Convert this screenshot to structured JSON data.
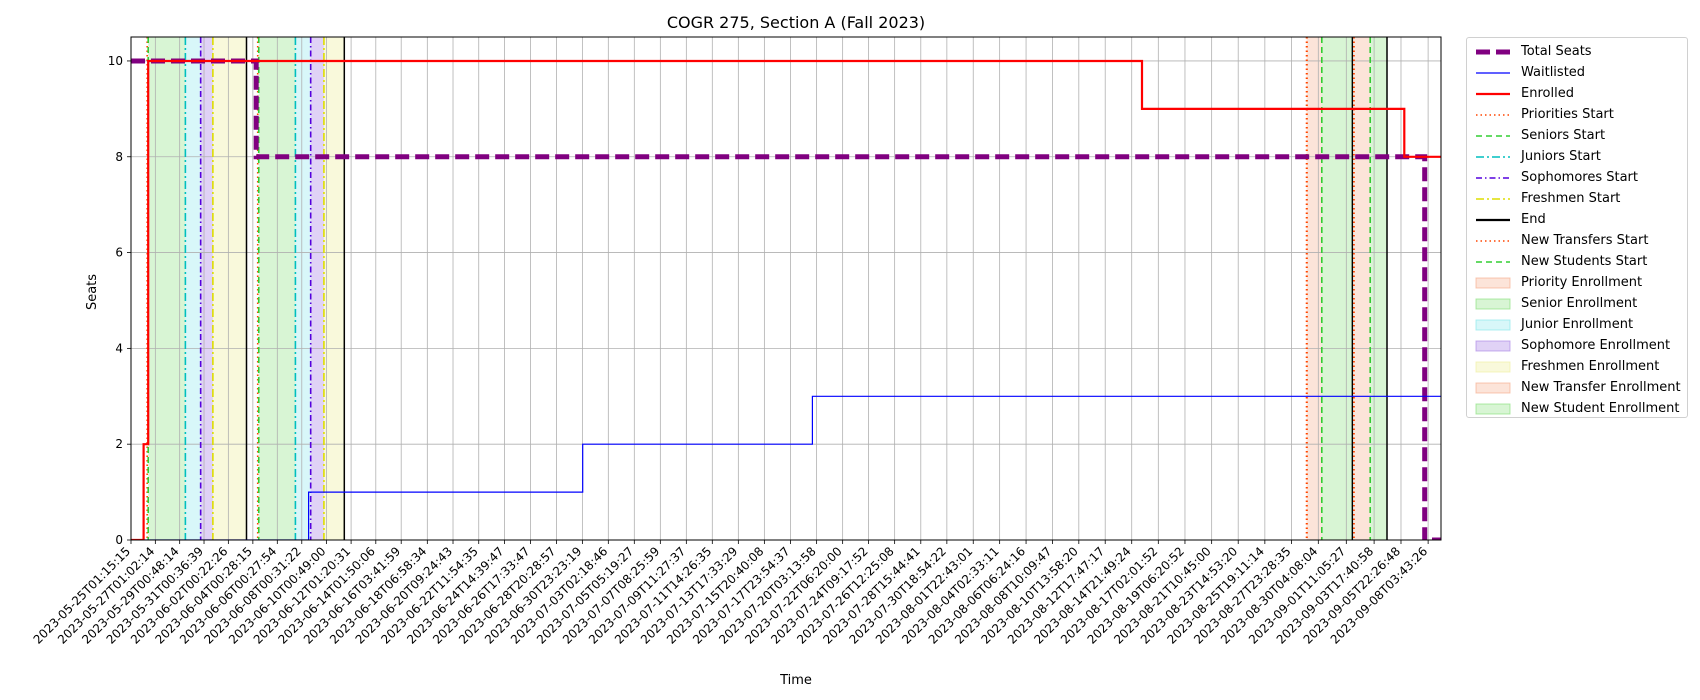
{
  "chart_data": {
    "type": "line",
    "title": "COGR 275, Section A (Fall 2023)",
    "xlabel": "Time",
    "ylabel": "Seats",
    "xlim": [
      "2023-05-25T01:15:15",
      "2023-09-09T05:00:00"
    ],
    "ylim": [
      0,
      10.5
    ],
    "grid": true,
    "legend_position": "outside-right",
    "x_ticks": [
      "2023-05-25T01:15:15",
      "2023-05-27T01:02:14",
      "2023-05-29T00:48:14",
      "2023-05-31T00:36:39",
      "2023-06-02T00:22:26",
      "2023-06-04T00:28:15",
      "2023-06-06T00:27:54",
      "2023-06-08T00:31:22",
      "2023-06-10T00:49:00",
      "2023-06-12T01:20:31",
      "2023-06-14T01:50:06",
      "2023-06-16T03:41:59",
      "2023-06-18T06:58:34",
      "2023-06-20T09:24:43",
      "2023-06-22T11:54:35",
      "2023-06-24T14:39:47",
      "2023-06-26T17:33:47",
      "2023-06-28T20:28:57",
      "2023-06-30T23:23:19",
      "2023-07-03T02:18:46",
      "2023-07-05T05:19:27",
      "2023-07-07T08:25:59",
      "2023-07-09T11:27:37",
      "2023-07-11T14:26:35",
      "2023-07-13T17:33:29",
      "2023-07-15T20:40:08",
      "2023-07-17T23:54:37",
      "2023-07-20T03:13:58",
      "2023-07-22T06:20:00",
      "2023-07-24T09:17:52",
      "2023-07-26T12:25:08",
      "2023-07-28T15:44:41",
      "2023-07-30T18:54:22",
      "2023-08-01T22:43:01",
      "2023-08-04T02:33:11",
      "2023-08-06T06:24:16",
      "2023-08-08T10:09:47",
      "2023-08-10T13:58:20",
      "2023-08-12T17:47:17",
      "2023-08-14T21:49:24",
      "2023-08-17T02:01:52",
      "2023-08-19T06:20:52",
      "2023-08-21T10:45:00",
      "2023-08-23T14:53:20",
      "2023-08-25T19:11:14",
      "2023-08-27T23:28:35",
      "2023-08-30T04:08:04",
      "2023-09-01T11:05:27",
      "2023-09-03T17:40:58",
      "2023-09-05T22:26:48",
      "2023-09-08T03:43:26"
    ],
    "y_ticks": [
      0,
      2,
      4,
      6,
      8,
      10
    ],
    "series": [
      {
        "name": "Total Seats",
        "color": "#800080",
        "style": "dashed-thick",
        "points": [
          [
            "2023-05-25T01:15:15",
            10
          ],
          [
            "2023-06-04T07:00:00",
            10
          ],
          [
            "2023-06-04T07:00:00",
            8
          ],
          [
            "2023-09-07T21:00:00",
            8
          ],
          [
            "2023-09-07T21:00:00",
            0
          ],
          [
            "2023-09-09T05:00:00",
            0
          ]
        ]
      },
      {
        "name": "Waitlisted",
        "color": "#0000ff",
        "style": "solid-thin",
        "points": [
          [
            "2023-05-25T01:15:15",
            0
          ],
          [
            "2023-06-08T14:00:00",
            0
          ],
          [
            "2023-06-08T14:00:00",
            1
          ],
          [
            "2023-07-01T00:00:00",
            1
          ],
          [
            "2023-07-01T00:00:00",
            2
          ],
          [
            "2023-07-19T19:00:00",
            2
          ],
          [
            "2023-07-19T19:00:00",
            3
          ],
          [
            "2023-09-09T05:00:00",
            3
          ]
        ]
      },
      {
        "name": "Enrolled",
        "color": "#ff0000",
        "style": "solid",
        "points": [
          [
            "2023-05-25T01:15:15",
            0
          ],
          [
            "2023-05-26T02:00:00",
            0
          ],
          [
            "2023-05-26T02:00:00",
            2
          ],
          [
            "2023-05-26T11:00:00",
            2
          ],
          [
            "2023-05-26T11:00:00",
            10
          ],
          [
            "2023-08-15T18:00:00",
            10
          ],
          [
            "2023-08-15T18:00:00",
            9
          ],
          [
            "2023-09-06T05:00:00",
            9
          ],
          [
            "2023-09-06T05:00:00",
            8
          ],
          [
            "2023-09-09T05:00:00",
            8
          ]
        ]
      }
    ],
    "vertical_markers": [
      {
        "name": "Priorities Start",
        "color": "#ff4500",
        "style": "dotted",
        "x": [
          "2023-05-26T09:00:00",
          "2023-06-04T10:00:00",
          "2023-08-29T05:00:00",
          "2023-09-02T02:00:00"
        ]
      },
      {
        "name": "Seniors Start",
        "color": "#32cd32",
        "style": "dashed",
        "x": [
          "2023-05-26T11:00:00",
          "2023-06-04T12:00:00"
        ]
      },
      {
        "name": "Juniors Start",
        "color": "#00bfbf",
        "style": "dashdot",
        "x": [
          "2023-05-29T12:00:00",
          "2023-06-07T12:00:00"
        ]
      },
      {
        "name": "Sophomores Start",
        "color": "#5500dd",
        "style": "dashdot-dense",
        "x": [
          "2023-05-30T18:00:00",
          "2023-06-08T18:00:00"
        ]
      },
      {
        "name": "Freshmen Start",
        "color": "#dddd00",
        "style": "dashdot",
        "x": [
          "2023-05-31T18:00:00",
          "2023-06-09T20:00:00"
        ]
      },
      {
        "name": "End",
        "color": "#000000",
        "style": "solid",
        "x": [
          "2023-06-03T12:00:00",
          "2023-06-11T12:00:00",
          "2023-09-01T23:00:00",
          "2023-09-04T19:00:00"
        ]
      },
      {
        "name": "New Transfers Start",
        "color": "#ff4500",
        "style": "dotted",
        "x": [
          "2023-08-29T06:00:00",
          "2023-09-02T02:00:00"
        ]
      },
      {
        "name": "New Students Start",
        "color": "#32cd32",
        "style": "dashed",
        "x": [
          "2023-08-30T11:00:00",
          "2023-09-03T10:00:00"
        ]
      }
    ],
    "shaded_periods": [
      {
        "name": "Priority Enrollment",
        "color": "#f4a582",
        "opacity": 0.3,
        "ranges": [
          [
            "2023-08-29T05:00:00",
            "2023-08-30T11:00:00"
          ]
        ]
      },
      {
        "name": "Senior Enrollment",
        "color": "#7fdd6f",
        "opacity": 0.3,
        "ranges": [
          [
            "2023-05-26T11:00:00",
            "2023-05-29T12:00:00"
          ],
          [
            "2023-06-04T12:00:00",
            "2023-06-07T12:00:00"
          ],
          [
            "2023-08-30T11:00:00",
            "2023-09-01T23:00:00"
          ]
        ]
      },
      {
        "name": "Junior Enrollment",
        "color": "#7fe5ea",
        "opacity": 0.3,
        "ranges": [
          [
            "2023-05-29T12:00:00",
            "2023-05-30T18:00:00"
          ],
          [
            "2023-06-07T12:00:00",
            "2023-06-08T18:00:00"
          ]
        ]
      },
      {
        "name": "Sophomore Enrollment",
        "color": "#a57fe5",
        "opacity": 0.35,
        "ranges": [
          [
            "2023-05-30T18:00:00",
            "2023-05-31T18:00:00"
          ],
          [
            "2023-06-08T18:00:00",
            "2023-06-09T20:00:00"
          ]
        ]
      },
      {
        "name": "Freshmen Enrollment",
        "color": "#eeee99",
        "opacity": 0.35,
        "ranges": [
          [
            "2023-05-31T18:00:00",
            "2023-06-03T12:00:00"
          ],
          [
            "2023-06-09T20:00:00",
            "2023-06-11T12:00:00"
          ]
        ]
      },
      {
        "name": "New Transfer Enrollment",
        "color": "#f4a582",
        "opacity": 0.3,
        "ranges": [
          [
            "2023-09-02T02:00:00",
            "2023-09-03T10:00:00"
          ]
        ]
      },
      {
        "name": "New Student Enrollment",
        "color": "#7fdd6f",
        "opacity": 0.3,
        "ranges": [
          [
            "2023-09-03T10:00:00",
            "2023-09-04T19:00:00"
          ]
        ]
      }
    ],
    "legend": [
      {
        "label": "Total Seats",
        "kind": "line",
        "color": "#800080",
        "style": "dashed-thick"
      },
      {
        "label": "Waitlisted",
        "kind": "line",
        "color": "#0000ff",
        "style": "solid-thin"
      },
      {
        "label": "Enrolled",
        "kind": "line",
        "color": "#ff0000",
        "style": "solid"
      },
      {
        "label": "Priorities Start",
        "kind": "line",
        "color": "#ff4500",
        "style": "dotted"
      },
      {
        "label": "Seniors Start",
        "kind": "line",
        "color": "#32cd32",
        "style": "dashed"
      },
      {
        "label": "Juniors Start",
        "kind": "line",
        "color": "#00bfbf",
        "style": "dashdot"
      },
      {
        "label": "Sophomores Start",
        "kind": "line",
        "color": "#5500dd",
        "style": "dashdot-dense"
      },
      {
        "label": "Freshmen Start",
        "kind": "line",
        "color": "#dddd00",
        "style": "dashdot"
      },
      {
        "label": "End",
        "kind": "line",
        "color": "#000000",
        "style": "solid"
      },
      {
        "label": "New Transfers Start",
        "kind": "line",
        "color": "#ff4500",
        "style": "dotted"
      },
      {
        "label": "New Students Start",
        "kind": "line",
        "color": "#32cd32",
        "style": "dashed"
      },
      {
        "label": "Priority Enrollment",
        "kind": "patch",
        "color": "#f4a582",
        "opacity": 0.3
      },
      {
        "label": "Senior Enrollment",
        "kind": "patch",
        "color": "#7fdd6f",
        "opacity": 0.3
      },
      {
        "label": "Junior Enrollment",
        "kind": "patch",
        "color": "#7fe5ea",
        "opacity": 0.3
      },
      {
        "label": "Sophomore Enrollment",
        "kind": "patch",
        "color": "#a57fe5",
        "opacity": 0.35
      },
      {
        "label": "Freshmen Enrollment",
        "kind": "patch",
        "color": "#eeee99",
        "opacity": 0.35
      },
      {
        "label": "New Transfer Enrollment",
        "kind": "patch",
        "color": "#f4a582",
        "opacity": 0.3
      },
      {
        "label": "New Student Enrollment",
        "kind": "patch",
        "color": "#7fdd6f",
        "opacity": 0.3
      }
    ]
  }
}
